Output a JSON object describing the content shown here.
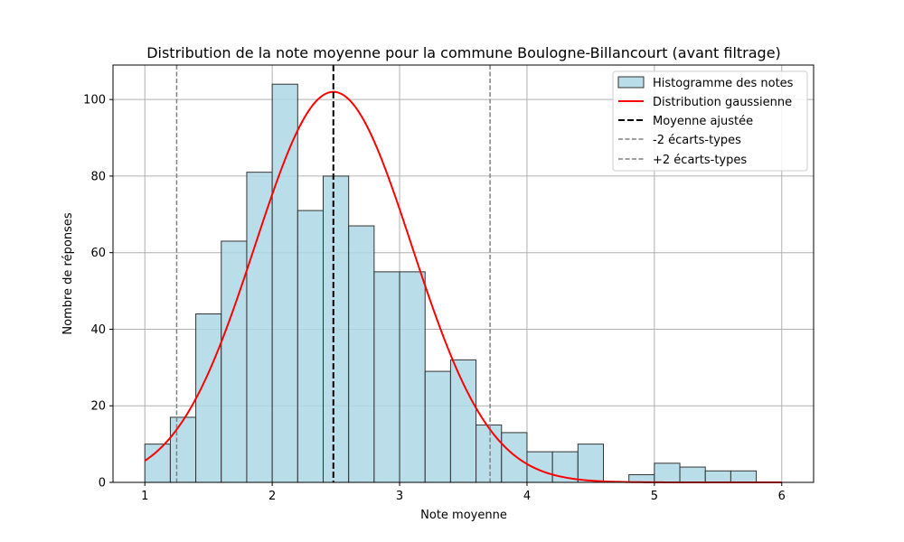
{
  "chart_data": {
    "type": "bar",
    "title": "Distribution de la note moyenne pour la commune Boulogne-Billancourt (avant filtrage)",
    "xlabel": "Note moyenne",
    "ylabel": "Nombre de réponses",
    "xlim": [
      0.75,
      6.25
    ],
    "ylim": [
      0,
      109
    ],
    "xticks": [
      1,
      2,
      3,
      4,
      5,
      6
    ],
    "yticks": [
      0,
      20,
      40,
      60,
      80,
      100
    ],
    "grid": true,
    "legend_position": "top-right",
    "bin_edges": [
      1.0,
      1.2,
      1.4,
      1.6,
      1.8,
      2.0,
      2.2,
      2.4,
      2.6,
      2.8,
      3.0,
      3.2,
      3.4,
      3.6,
      3.8,
      4.0,
      4.2,
      4.4,
      4.6,
      4.8,
      5.0,
      5.2,
      5.4,
      5.6,
      5.8
    ],
    "counts": [
      10,
      17,
      44,
      63,
      81,
      104,
      71,
      80,
      67,
      55,
      55,
      29,
      32,
      15,
      13,
      8,
      8,
      10,
      0,
      2,
      5,
      4,
      3,
      3
    ],
    "gaussian": {
      "mean": 2.48,
      "std": 0.615,
      "peak": 102,
      "x_range": [
        1,
        6
      ]
    },
    "mean_line": 2.48,
    "std_lines": [
      1.25,
      3.71
    ],
    "series": [
      {
        "name": "Histogramme des notes",
        "kind": "bar",
        "color": "#add8e6"
      },
      {
        "name": "Distribution gaussienne",
        "kind": "line",
        "color": "#ff0000"
      },
      {
        "name": "Moyenne ajustée",
        "kind": "vline",
        "color": "#000000"
      },
      {
        "name": "-2 écarts-types",
        "kind": "vline",
        "color": "#808080"
      },
      {
        "name": "+2 écarts-types",
        "kind": "vline",
        "color": "#808080"
      }
    ]
  }
}
